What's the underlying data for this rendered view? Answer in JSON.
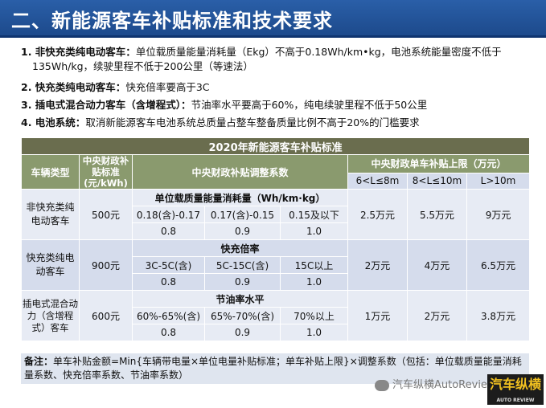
{
  "title": "二、新能源客车补贴标准和技术要求",
  "requirements": [
    {
      "label": "1. 非快充类纯电动客车：",
      "text": "单位载质量能量消耗量（Ekg）不高于0.18Wh/km•kg，电池系统能量密度不低于",
      "text2": "135Wh/kg，续驶里程不低于200公里（等速法）"
    },
    {
      "label": "2. 快充类纯电动客车：",
      "text": "快充倍率要高于3C"
    },
    {
      "label": "3. 插电式混合动力客车（含增程式）：",
      "text": "节油率水平要高于60%，纯电续驶里程不低于50公里"
    },
    {
      "label": "4. 电池系统：",
      "text": "取消新能源客车电池系统总质量占整车整备质量比例不高于20%的门槛要求"
    }
  ],
  "table": {
    "caption": "2020年新能源客车补贴标准",
    "h_type": "车辆类型",
    "h_std": "中央财政补贴标准(元/kWh)",
    "h_coef": "中央财政补贴调整系数",
    "h_limit": "中央财政单车补贴上限（万元）",
    "len1": "6<L≤8m",
    "len2": "8<L≤10m",
    "len3": "L>10m",
    "rows": [
      {
        "type": "非快充类纯电动客车",
        "std": "500元",
        "sub": "单位载质量能量消耗量（Wh/km·kg）",
        "c1": "0.18(含)-0.17",
        "c2": "0.17(含)-0.15",
        "c3": "0.15及以下",
        "v1": "0.8",
        "v2": "0.9",
        "v3": "1.0",
        "l1": "2.5万元",
        "l2": "5.5万元",
        "l3": "9万元"
      },
      {
        "type": "快充类纯电动客车",
        "std": "900元",
        "sub": "快充倍率",
        "c1": "3C-5C(含)",
        "c2": "5C-15C(含)",
        "c3": "15C以上",
        "v1": "0.8",
        "v2": "0.9",
        "v3": "1.0",
        "l1": "2万元",
        "l2": "4万元",
        "l3": "6.5万元"
      },
      {
        "type": "插电式混合动力（含增程式）客车",
        "std": "600元",
        "sub": "节油率水平",
        "c1": "60%-65%(含)",
        "c2": "65%-70%(含)",
        "c3": "70%以上",
        "v1": "0.8",
        "v2": "0.9",
        "v3": "1.0",
        "l1": "1万元",
        "l2": "2万元",
        "l3": "3.8万元"
      }
    ]
  },
  "note_label": "备注：",
  "note": "单车补贴金额=Min{车辆带电量×单位电量补贴标准；单车补贴上限}×调整系数（包括：单位载质量能量消耗量系数、快充倍率系数、节油率系数）",
  "watermark": "汽车纵横AutoReview",
  "logo_text": "汽车纵横",
  "logo_sub": "AUTO REVIEW"
}
